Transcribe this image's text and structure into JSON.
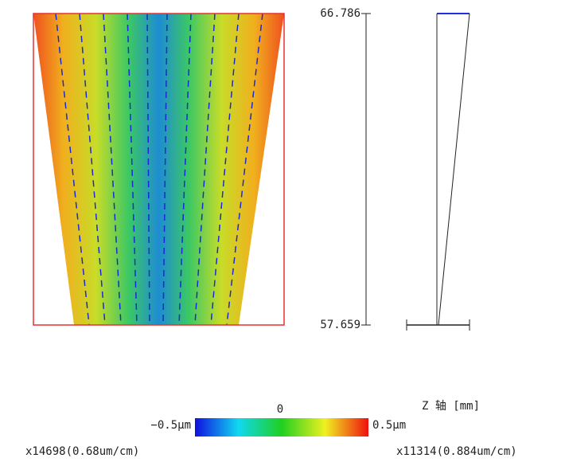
{
  "z_axis": {
    "top": "66.786",
    "bottom": "57.659",
    "label": "Z 轴 [mm]"
  },
  "colorbar": {
    "min_label": "−0.5μm",
    "mid_label": "0",
    "max_label": "0.5μm"
  },
  "scales": {
    "left": "x14698(0.68um/cm)",
    "right": "x11314(0.884um/cm)"
  }
}
